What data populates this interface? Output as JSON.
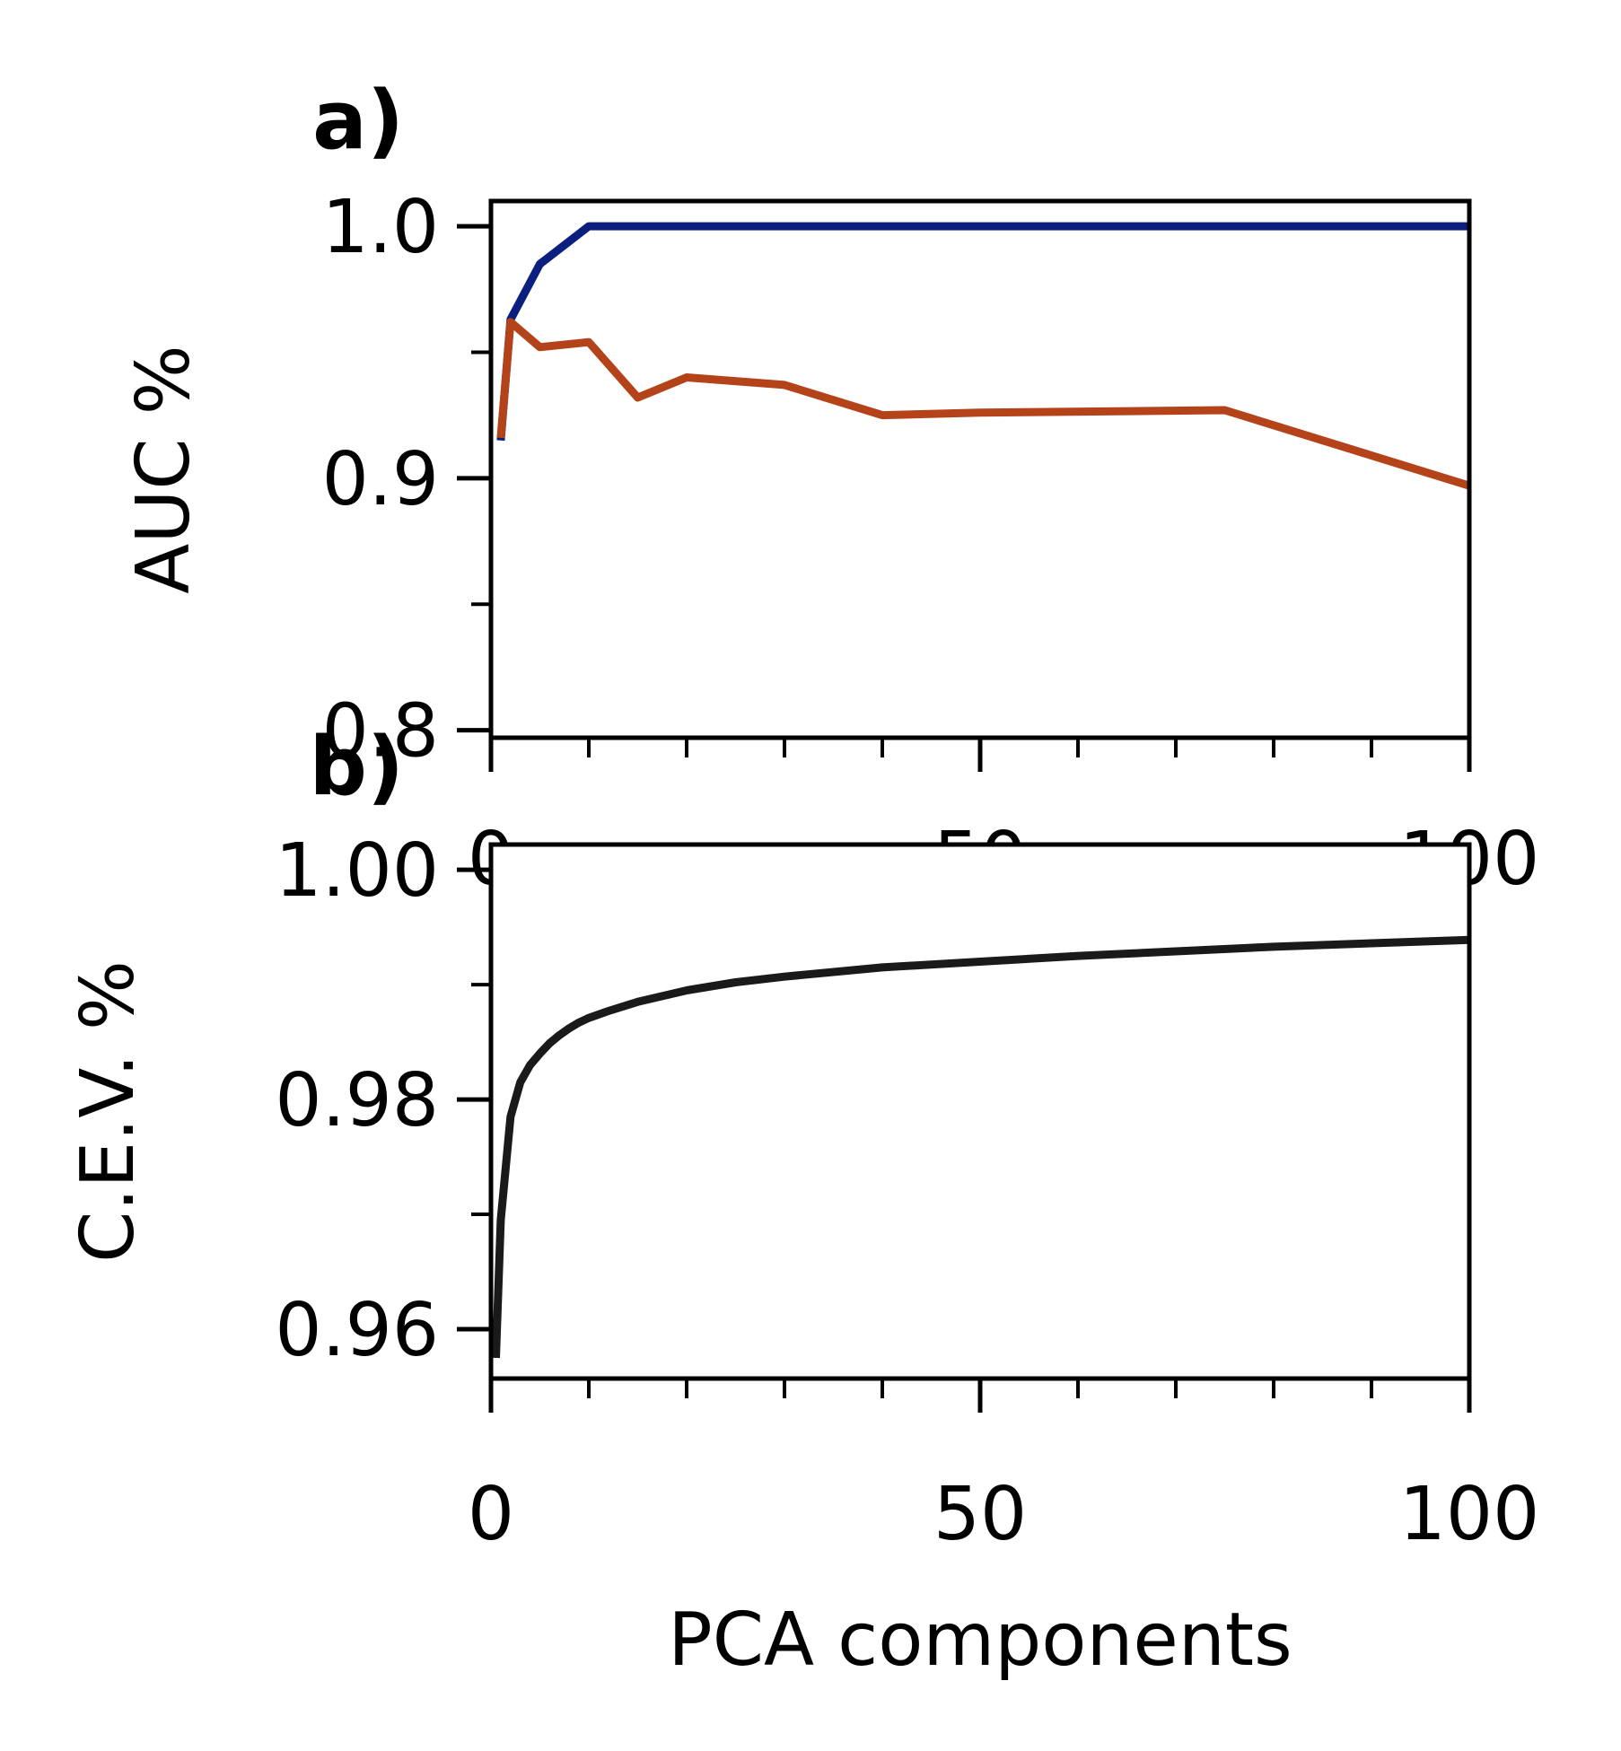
{
  "chart_data": [
    {
      "type": "line",
      "panel_label": "a)",
      "xlabel": "",
      "ylabel": "AUC %",
      "xlim": [
        0,
        100
      ],
      "ylim": [
        0.797,
        1.01
      ],
      "xticks": [
        0,
        50,
        100
      ],
      "xtick_labels": [
        "0",
        "50",
        "100"
      ],
      "yticks": [
        0.8,
        0.9,
        1.0
      ],
      "ytick_labels": [
        "0.8",
        "0.9",
        "1.0"
      ],
      "grid": false,
      "series": [
        {
          "color": "#0b1f7f",
          "x": [
            1,
            2,
            5,
            10,
            15,
            20,
            30,
            40,
            50,
            75,
            100
          ],
          "y": [
            0.915,
            0.963,
            0.985,
            1.0,
            1.0,
            1.0,
            1.0,
            1.0,
            1.0,
            1.0,
            1.0
          ]
        },
        {
          "color": "#b5431a",
          "x": [
            1,
            2,
            5,
            10,
            15,
            20,
            30,
            40,
            50,
            75,
            100
          ],
          "y": [
            0.916,
            0.962,
            0.952,
            0.954,
            0.932,
            0.94,
            0.937,
            0.925,
            0.926,
            0.927,
            0.897
          ]
        }
      ]
    },
    {
      "type": "line",
      "panel_label": "b)",
      "xlabel": "PCA components",
      "ylabel": "C.E.V. %",
      "xlim": [
        0,
        100
      ],
      "ylim": [
        0.9557,
        1.0022
      ],
      "xticks": [
        0,
        50,
        100
      ],
      "xtick_labels": [
        "0",
        "50",
        "100"
      ],
      "yticks": [
        0.96,
        0.98,
        1.0
      ],
      "ytick_labels": [
        "0.96",
        "0.98",
        "1.00"
      ],
      "grid": false,
      "series": [
        {
          "color": "#1a1a1a",
          "x": [
            0.5,
            1,
            2,
            3,
            4,
            5,
            6,
            7,
            8,
            9,
            10,
            12,
            15,
            20,
            25,
            30,
            40,
            50,
            60,
            70,
            80,
            90,
            100
          ],
          "y": [
            0.9575,
            0.9695,
            0.9785,
            0.9815,
            0.983,
            0.984,
            0.9849,
            0.9856,
            0.9862,
            0.9867,
            0.9871,
            0.9877,
            0.9885,
            0.9895,
            0.9902,
            0.9907,
            0.9915,
            0.992,
            0.9925,
            0.9929,
            0.9933,
            0.9936,
            0.9939
          ]
        }
      ]
    }
  ]
}
